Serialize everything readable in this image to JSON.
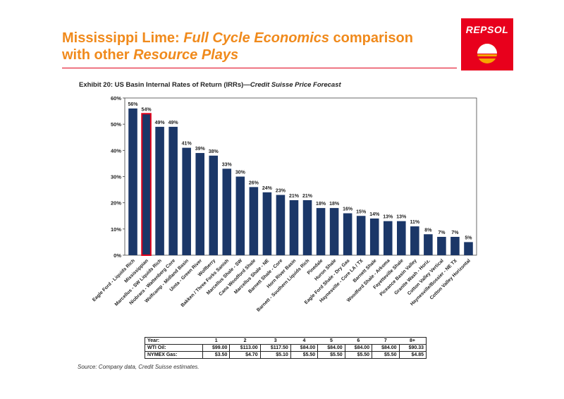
{
  "slide": {
    "title_part1": "Mississippi Lime: ",
    "title_part2": "Full Cycle Economics",
    "title_part3": " comparison",
    "title_part4": "with other ",
    "title_part5": "Resource Plays",
    "logo_text": "REPSOL"
  },
  "exhibit": {
    "label": "Exhibit 20:",
    "title_main": " US Basin Internal Rates of Return (IRRs)—",
    "title_italic": "Credit Suisse Price Forecast"
  },
  "colors": {
    "bar": "#1b3768",
    "highlight_outline": "#e0001a",
    "title": "#f08a1c",
    "logo": "#e8001c"
  },
  "chart_data": {
    "type": "bar",
    "ylim": [
      0,
      60
    ],
    "yticks": [
      "0%",
      "10%",
      "20%",
      "30%",
      "40%",
      "50%",
      "60%"
    ],
    "grid": false,
    "highlight_category": "Mississippian",
    "categories": [
      "Eagle Ford - Liquids Rich",
      "Mississippian",
      "Marcellus - SW Liquids Rich",
      "Niobrara - Wattenberg Core",
      "Wolfcamp - Midland Basin",
      "Uinta - Green River",
      "Wolfberry",
      "Bakken / Three Forks Sanish",
      "Marcellus Shale - SW",
      "Cana Woodford Shale",
      "Marcellus Shale - NE",
      "Barnett Shale - Core",
      "Horn River Basin",
      "Barnett - Southern Liquids Rich",
      "Pinedale",
      "Huron Shale",
      "Eagle Ford Shale - Dry Gas",
      "Haynesville - Core LA / TX",
      "Barnett Shale",
      "Woodford Shale - Arkoma",
      "Fayetteville Shale",
      "Piceance Basin Valley",
      "Granite Wash - Horiz.",
      "Cotton Valley Vertical",
      "Haynesville/Bossier - NE TX",
      "Cotton Valley Horizontal"
    ],
    "values": [
      56,
      54,
      49,
      49,
      41,
      39,
      38,
      33,
      30,
      26,
      24,
      23,
      21,
      21,
      18,
      18,
      16,
      15,
      14,
      13,
      13,
      11,
      8,
      7,
      7,
      5
    ],
    "value_labels": [
      "56%",
      "54%",
      "49%",
      "49%",
      "41%",
      "39%",
      "38%",
      "33%",
      "30%",
      "26%",
      "24%",
      "23%",
      "21%",
      "21%",
      "18%",
      "18%",
      "16%",
      "15%",
      "14%",
      "13%",
      "13%",
      "11%",
      "8%",
      "7%",
      "7%",
      "5%"
    ]
  },
  "price_table": {
    "header_label": "Year:",
    "years": [
      "1",
      "2",
      "3",
      "4",
      "5",
      "6",
      "7",
      "8+"
    ],
    "rows": [
      {
        "label": "WTI Oil:",
        "values": [
          "$99.00",
          "$113.00",
          "$117.50",
          "$84.00",
          "$84.00",
          "$84.00",
          "$84.00",
          "$90.33"
        ]
      },
      {
        "label": "NYMEX Gas:",
        "values": [
          "$3.50",
          "$4.70",
          "$5.10",
          "$5.50",
          "$5.50",
          "$5.50",
          "$5.50",
          "$4.85"
        ]
      }
    ]
  },
  "source": "Source: Company data, Credit Suisse estimates."
}
